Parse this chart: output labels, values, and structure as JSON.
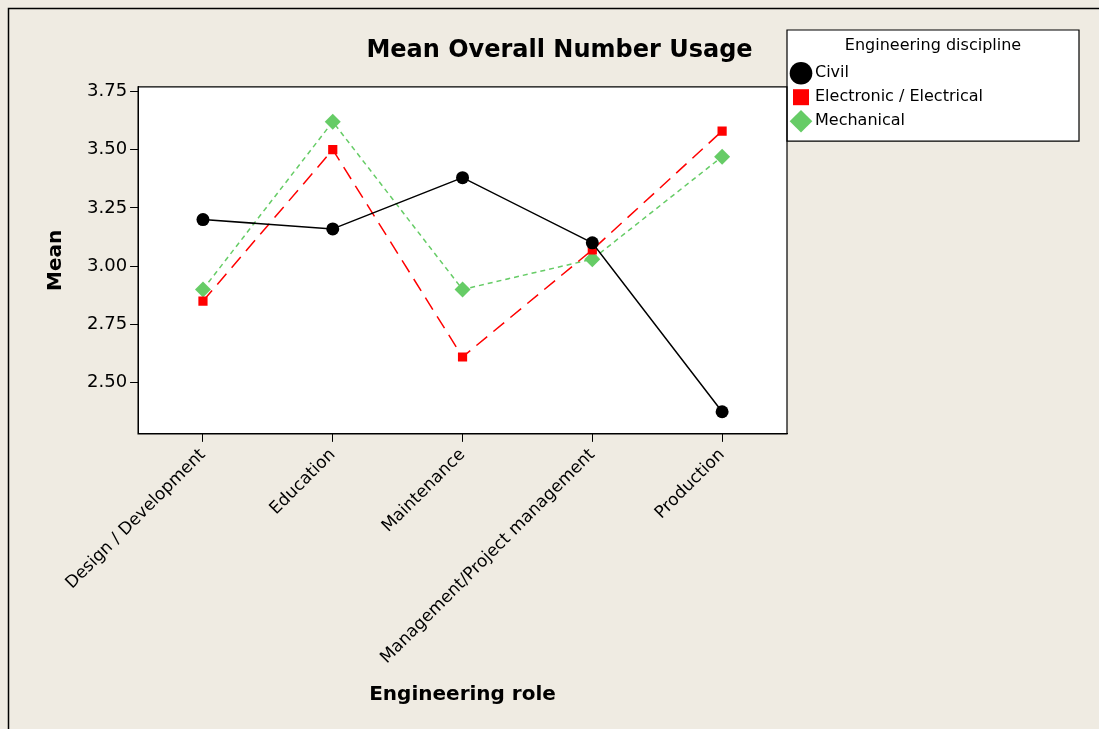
{
  "chart_data": {
    "type": "line",
    "title": "Mean Overall Number Usage",
    "xlabel": "Engineering role",
    "ylabel": "Mean",
    "legend_title": "Engineering discipline",
    "categories": [
      "Design / Development",
      "Education",
      "Maintenance",
      "Management/Project management",
      "Production"
    ],
    "series": [
      {
        "name": "Civil",
        "color": "#000000",
        "marker": "circle",
        "line_style": "solid",
        "values": [
          3.2,
          3.16,
          3.38,
          3.1,
          2.375
        ]
      },
      {
        "name": "Electronic / Electrical",
        "color": "#ff0000",
        "marker": "square",
        "line_style": "dashed",
        "values": [
          2.85,
          3.5,
          2.61,
          3.07,
          3.58
        ]
      },
      {
        "name": "Mechanical",
        "color": "#66cc66",
        "marker": "diamond",
        "line_style": "dotted",
        "values": [
          2.9,
          3.62,
          2.9,
          3.03,
          3.47
        ]
      }
    ],
    "ylim": [
      2.28,
      3.77
    ],
    "yticks": [
      {
        "value": 2.5,
        "label": "2.50"
      },
      {
        "value": 2.75,
        "label": "2.75"
      },
      {
        "value": 3,
        "label": "3.00"
      },
      {
        "value": 3.25,
        "label": "3.25"
      },
      {
        "value": 3.5,
        "label": "3.50"
      },
      {
        "value": 3.75,
        "label": "3.75"
      }
    ],
    "grid": false,
    "legend": "top right"
  }
}
